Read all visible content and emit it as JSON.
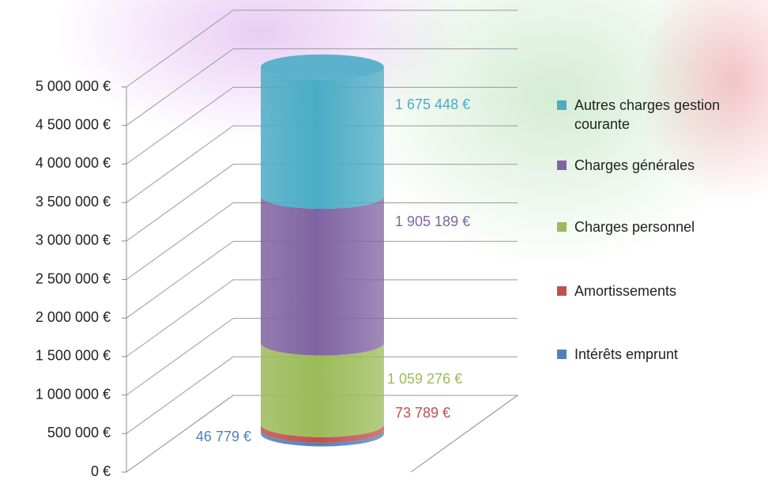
{
  "chart_data": {
    "type": "stacked-cylinder",
    "categories": [
      null
    ],
    "series": [
      {
        "name": "Intérêts emprunt",
        "color": "#4f81bd",
        "values": [
          46779
        ],
        "value_labels": [
          "46 779 €"
        ]
      },
      {
        "name": "Amortissements",
        "color": "#c0504d",
        "values": [
          73789
        ],
        "value_labels": [
          "73 789 €"
        ]
      },
      {
        "name": "Charges personnel",
        "color": "#9bbb59",
        "values": [
          1059276
        ],
        "value_labels": [
          "1 059 276 €"
        ]
      },
      {
        "name": "Charges générales",
        "color": "#8064a2",
        "values": [
          1905189
        ],
        "value_labels": [
          "1 905 189 €"
        ]
      },
      {
        "name": "Autres charges gestion courante",
        "color": "#4bacc6",
        "values": [
          1675448
        ],
        "value_labels": [
          "1 675 448 €"
        ]
      }
    ],
    "ylim": [
      0,
      5000000
    ],
    "yticks": [
      {
        "value": 0,
        "label": "0 €"
      },
      {
        "value": 500000,
        "label": "500 000 €"
      },
      {
        "value": 1000000,
        "label": "1 000 000 €"
      },
      {
        "value": 1500000,
        "label": "1 500 000 €"
      },
      {
        "value": 2000000,
        "label": "2 000 000 €"
      },
      {
        "value": 2500000,
        "label": "2 500 000 €"
      },
      {
        "value": 3000000,
        "label": "3 000 000 €"
      },
      {
        "value": 3500000,
        "label": "3 500 000 €"
      },
      {
        "value": 4000000,
        "label": "4 000 000 €"
      },
      {
        "value": 4500000,
        "label": "4 500 000 €"
      },
      {
        "value": 5000000,
        "label": "5 000 000 €"
      }
    ],
    "grid": true,
    "legend": "right"
  }
}
